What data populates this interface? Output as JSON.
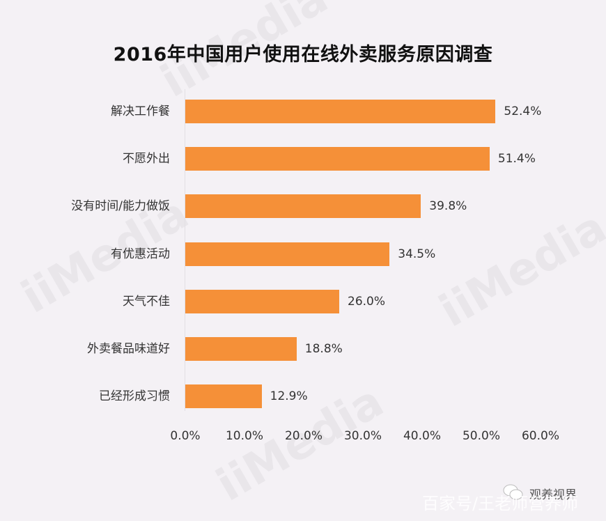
{
  "chart_data": {
    "type": "bar",
    "orientation": "horizontal",
    "title": "2016年中国用户使用在线外卖服务原因调查",
    "categories": [
      "解决工作餐",
      "不愿外出",
      "没有时间/能力做饭",
      "有优惠活动",
      "天气不佳",
      "外卖餐品味道好",
      "已经形成习惯"
    ],
    "values": [
      52.4,
      51.4,
      39.8,
      34.5,
      26.0,
      18.8,
      12.9
    ],
    "value_labels": [
      "52.4%",
      "51.4%",
      "39.8%",
      "34.5%",
      "26.0%",
      "18.8%",
      "12.9%"
    ],
    "xlabel": "",
    "ylabel": "",
    "xlim": [
      0,
      60
    ],
    "x_ticks": [
      "0.0%",
      "10.0%",
      "20.0%",
      "30.0%",
      "40.0%",
      "50.0%",
      "60.0%"
    ],
    "grid": false,
    "legend": "none",
    "bar_color": "#f59038"
  },
  "watermarks": {
    "brand": "iiMedia",
    "footer_source": "百家号/王老师营养师",
    "wechat_account": "观养视界"
  }
}
